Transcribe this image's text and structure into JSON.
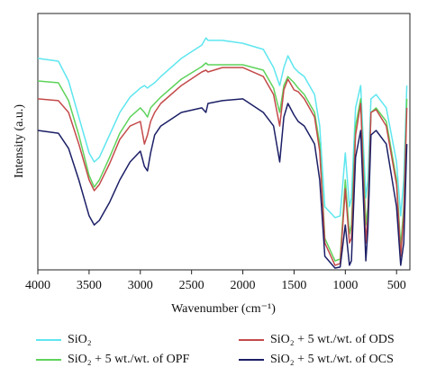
{
  "chart_data": {
    "type": "line",
    "x_label": "Wavenumber (cm⁻¹)",
    "y_label": "Intensity (a.u.)",
    "xlim": [
      4000,
      370
    ],
    "ylim": [
      0,
      100
    ],
    "xticks": [
      4000,
      3500,
      3000,
      2500,
      2000,
      1500,
      1000,
      500
    ],
    "x": [
      4000,
      3800,
      3700,
      3600,
      3500,
      3450,
      3400,
      3300,
      3200,
      3100,
      3000,
      2960,
      2930,
      2900,
      2860,
      2800,
      2600,
      2400,
      2360,
      2340,
      2200,
      2000,
      1800,
      1700,
      1640,
      1600,
      1560,
      1500,
      1460,
      1400,
      1300,
      1250,
      1200,
      1100,
      1050,
      1000,
      960,
      940,
      900,
      850,
      800,
      780,
      750,
      700,
      600,
      500,
      460,
      430,
      400
    ],
    "series": [
      {
        "name": "SiO₂",
        "color": "#5ee6ef",
        "values": [
          82.5,
          81.4,
          73.7,
          59.6,
          45.6,
          42.1,
          43.9,
          52.6,
          61.4,
          67.4,
          70.9,
          71.9,
          70.9,
          71.9,
          73.0,
          75.4,
          82.5,
          87.7,
          90.5,
          89.5,
          89.5,
          88.4,
          86.0,
          78.9,
          71.9,
          78.9,
          83.5,
          78.9,
          77.2,
          75.4,
          68.4,
          56.1,
          24.6,
          20.4,
          21.1,
          45.6,
          24.6,
          28.1,
          63.2,
          71.9,
          28.1,
          35.1,
          66.7,
          68.4,
          63.2,
          42.1,
          21.1,
          35.1,
          71.9
        ]
      },
      {
        "name": "SiO₂ + 5 wt./wt. of OPF",
        "color": "#5ed35a",
        "values": [
          73.7,
          73.0,
          66.0,
          52.6,
          36.8,
          32.3,
          35.1,
          43.9,
          53.3,
          59.6,
          63.2,
          61.4,
          59.6,
          63.2,
          64.9,
          67.4,
          74.4,
          79.3,
          80.7,
          80.0,
          80.0,
          80.0,
          77.9,
          70.9,
          61.4,
          71.9,
          75.4,
          73.0,
          70.9,
          68.4,
          61.4,
          49.1,
          12.3,
          3.5,
          4.2,
          35.1,
          14.0,
          17.5,
          56.1,
          66.7,
          17.5,
          24.6,
          61.4,
          63.2,
          57.9,
          35.1,
          8.8,
          24.6,
          66.7
        ]
      },
      {
        "name": "SiO₂ + 5 wt./wt. of ODS",
        "color": "#c44a4a",
        "values": [
          66.7,
          66.0,
          61.4,
          49.1,
          35.1,
          30.9,
          33.3,
          41.4,
          50.9,
          56.1,
          57.9,
          49.1,
          52.6,
          57.9,
          61.4,
          64.9,
          71.9,
          77.2,
          77.9,
          77.2,
          78.9,
          78.9,
          75.4,
          68.4,
          56.1,
          70.2,
          74.4,
          70.2,
          69.5,
          66.7,
          59.6,
          46.3,
          10.5,
          1.8,
          2.5,
          31.6,
          10.5,
          12.3,
          52.6,
          64.9,
          10.5,
          21.1,
          61.4,
          62.5,
          56.1,
          33.3,
          5.3,
          21.1,
          63.2
        ]
      },
      {
        "name": "SiO₂ + 5 wt./wt. of OCS",
        "color": "#1c1f66",
        "values": [
          54.4,
          53.3,
          47.4,
          35.1,
          21.1,
          17.5,
          19.3,
          26.3,
          35.1,
          42.1,
          46.3,
          40.4,
          38.6,
          45.6,
          52.6,
          56.1,
          61.4,
          63.2,
          61.4,
          64.9,
          66.0,
          66.7,
          61.4,
          56.1,
          42.1,
          59.6,
          64.9,
          60.4,
          57.9,
          56.1,
          49.1,
          35.1,
          5.3,
          0.7,
          1.1,
          17.5,
          1.8,
          3.5,
          43.9,
          54.4,
          3.5,
          15.8,
          52.6,
          54.4,
          49.1,
          24.6,
          1.8,
          10.5,
          49.1
        ]
      }
    ]
  }
}
